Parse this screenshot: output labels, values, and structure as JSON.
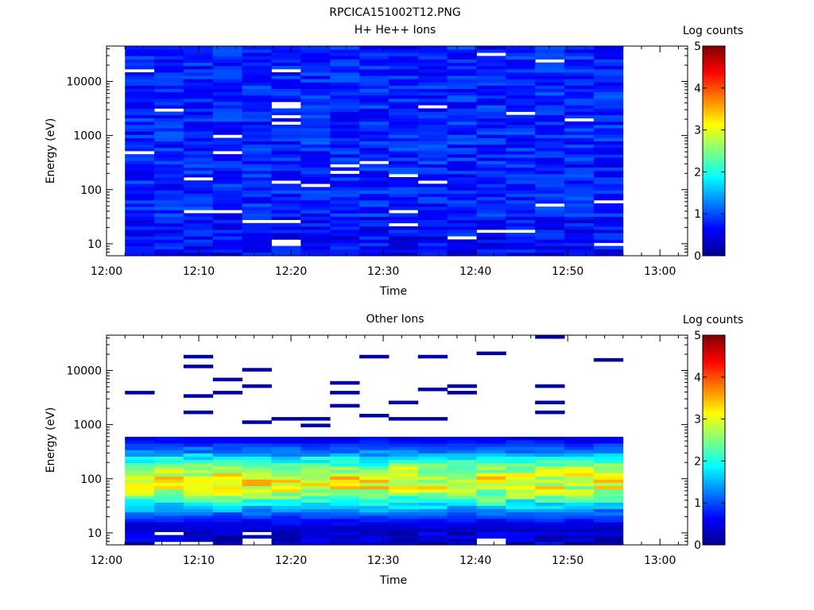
{
  "figure": {
    "title": "RPCICA151002T12.PNG"
  },
  "chart_data": [
    {
      "type": "heatmap",
      "title": "H+ He++ Ions",
      "xlabel": "Time",
      "ylabel": "Energy (eV)",
      "x_ticks": [
        "12:00",
        "12:10",
        "12:20",
        "12:30",
        "12:40",
        "12:50",
        "13:00"
      ],
      "x_range_minutes": [
        0,
        63
      ],
      "data_x_range_minutes": [
        2,
        56
      ],
      "y_scale": "log",
      "y_range": [
        6,
        45000
      ],
      "y_ticks": [
        "10",
        "100",
        "1000",
        "10000"
      ],
      "colorbar": {
        "label": "Log counts",
        "ticks": [
          "0",
          "1",
          "2",
          "3",
          "4",
          "5"
        ],
        "range": [
          0,
          5
        ],
        "colormap": "jet"
      },
      "description_values": "Background log counts ~0.6-1.0 across 10 eV-40 keV with scattered empty bins; lowest energies below 30 eV at ~0.3-0.8",
      "typical_log_counts": 0.8
    },
    {
      "type": "heatmap",
      "title": "Other Ions",
      "xlabel": "Time",
      "ylabel": "Energy (eV)",
      "x_ticks": [
        "12:00",
        "12:10",
        "12:20",
        "12:30",
        "12:40",
        "12:50",
        "13:00"
      ],
      "x_range_minutes": [
        0,
        63
      ],
      "data_x_range_minutes": [
        2,
        56
      ],
      "y_scale": "log",
      "y_range": [
        6,
        45000
      ],
      "y_ticks": [
        "10",
        "100",
        "1000",
        "10000"
      ],
      "colorbar": {
        "label": "Log counts",
        "ticks": [
          "0",
          "1",
          "2",
          "3",
          "4",
          "5"
        ],
        "range": [
          0,
          5
        ],
        "colormap": "jet"
      },
      "peak_energy_eV": 90,
      "peak_log_counts_range": [
        2.5,
        3.6
      ],
      "sparse_high_energy_log_counts": 0.2
    }
  ],
  "colors": {
    "axis": "#000000",
    "background": "#ffffff"
  }
}
